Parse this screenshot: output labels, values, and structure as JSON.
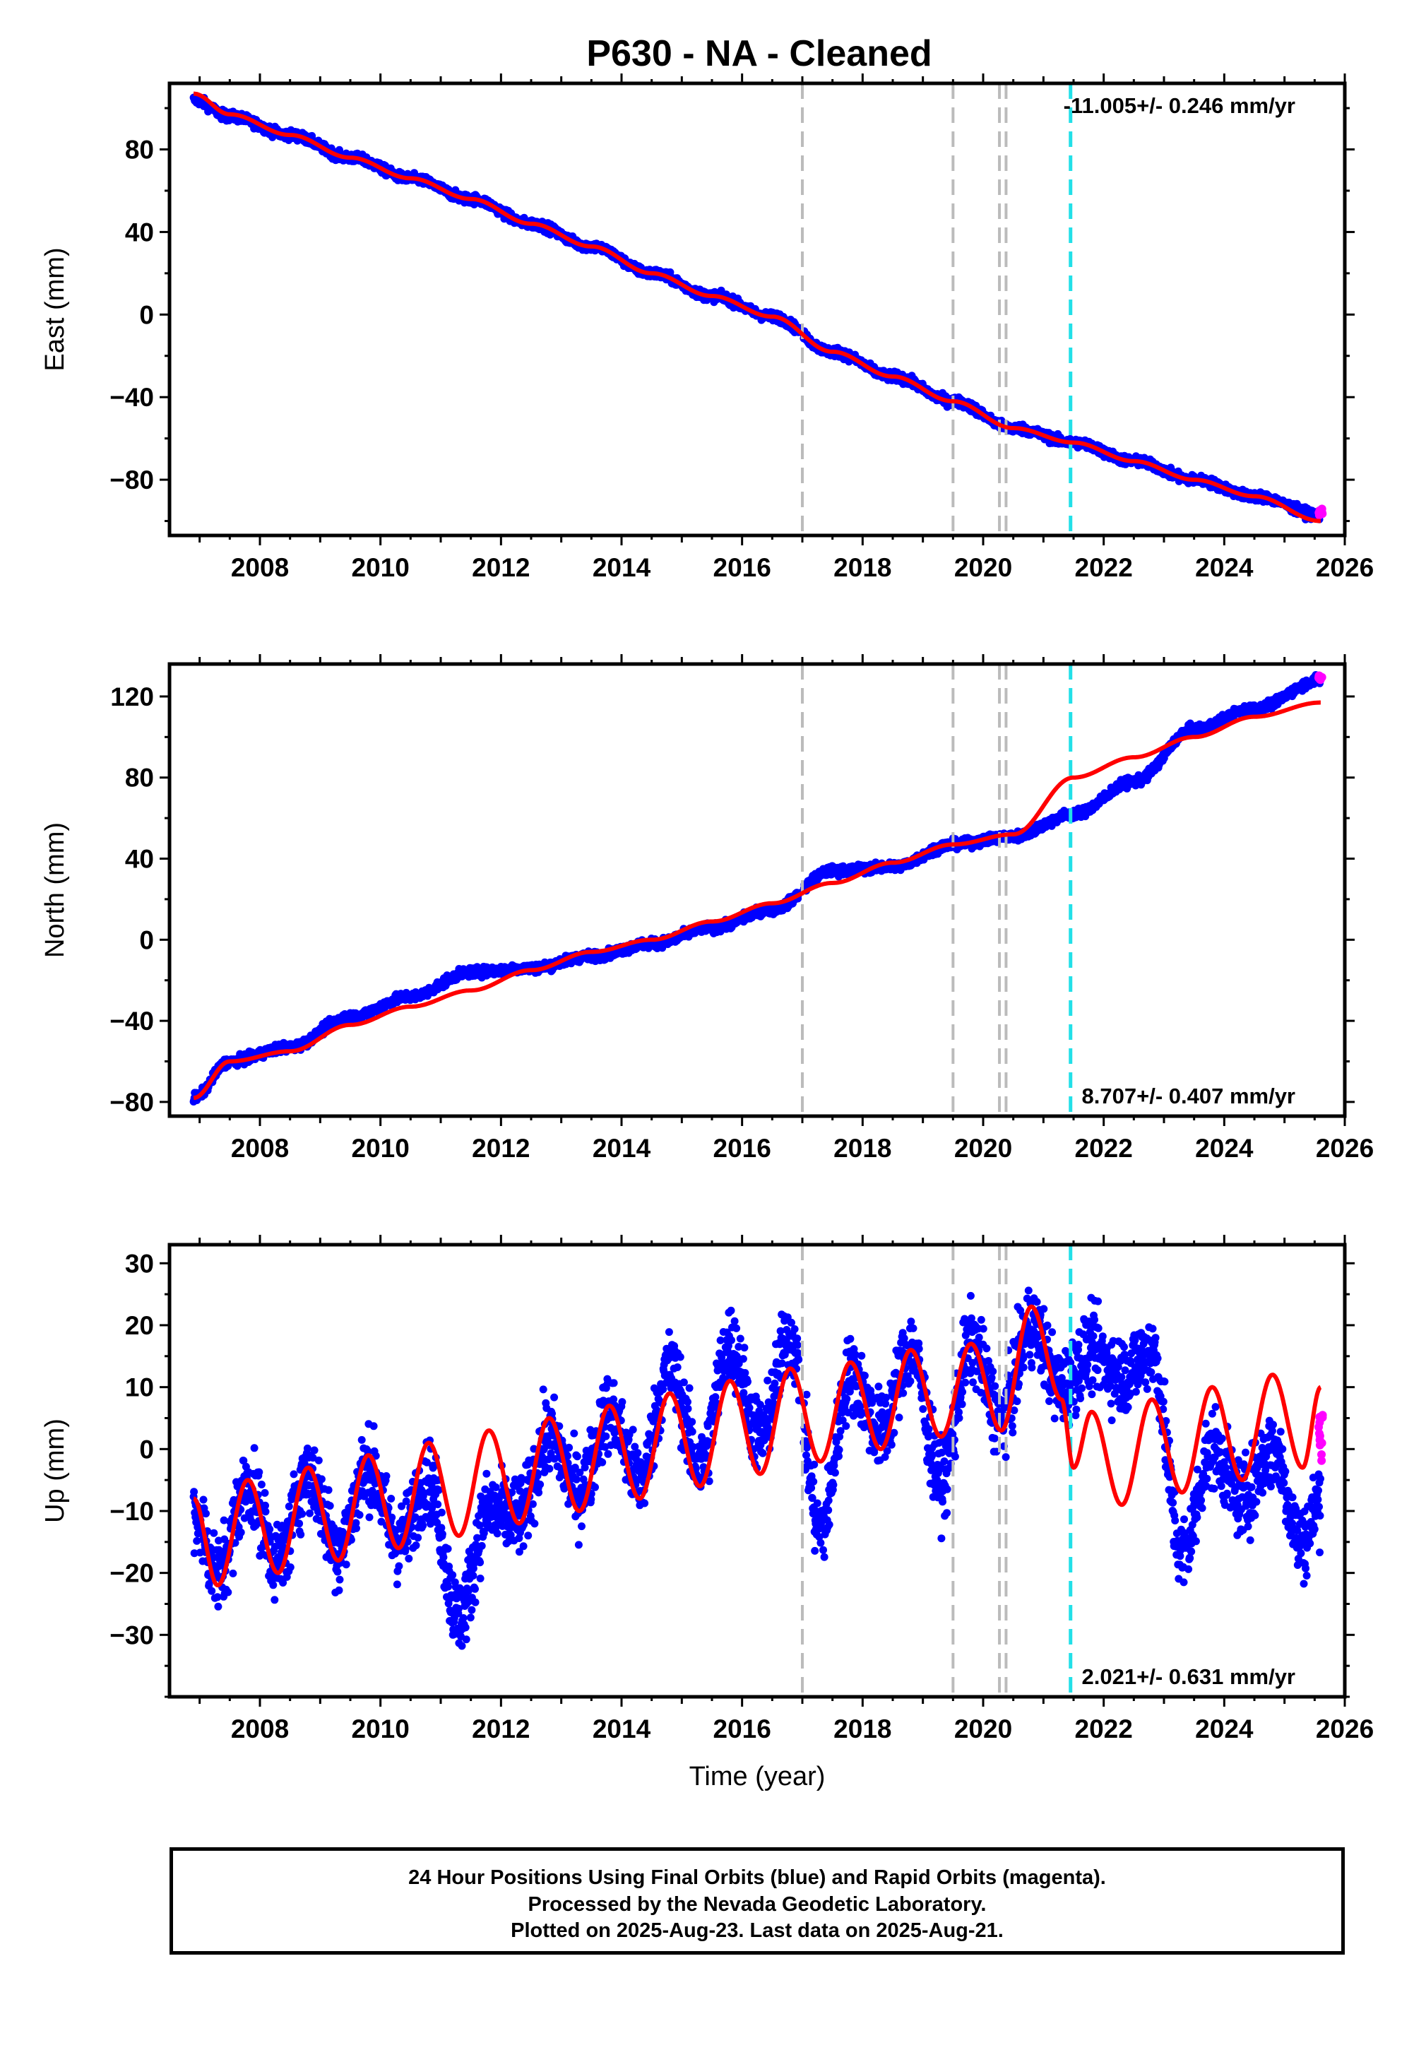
{
  "title": "P630  - NA - Cleaned",
  "footer": {
    "line1": "24 Hour Positions Using Final Orbits (blue) and Rapid Orbits (magenta).",
    "line2": "Processed by the Nevada Geodetic Laboratory.",
    "line3": "Plotted on 2025-Aug-23. Last data on 2025-Aug-21."
  },
  "colors": {
    "final_orbits": "#0000ff",
    "rapid_orbits": "#ff00ff",
    "model": "#ff0000",
    "event_gray": "#bbbbbb",
    "event_cyan": "#22e0e8"
  },
  "chart_data": [
    {
      "type": "scatter",
      "ylabel": "East (mm)",
      "xlabel": "",
      "xlim": [
        2006.5,
        2026.0
      ],
      "ylim": [
        -107,
        112
      ],
      "x_ticks": [
        2008,
        2010,
        2012,
        2014,
        2016,
        2018,
        2020,
        2022,
        2024,
        2026
      ],
      "y_ticks": [
        80,
        40,
        0,
        -40,
        -80
      ],
      "rate_label": "-11.005+/- 0.246 mm/yr",
      "rate_position": "top-right",
      "events": [
        {
          "year": 2017.0,
          "color": "gray"
        },
        {
          "year": 2019.5,
          "color": "gray"
        },
        {
          "year": 2020.27,
          "color": "gray"
        },
        {
          "year": 2020.38,
          "color": "gray"
        },
        {
          "year": 2021.45,
          "color": "cyan"
        }
      ],
      "series": [
        {
          "values": [
            [
              2006.9,
              104
            ],
            [
              2007.5,
              96
            ],
            [
              2008.5,
              87
            ],
            [
              2009.5,
              76
            ],
            [
              2010.5,
              66
            ],
            [
              2011.5,
              56
            ],
            [
              2012.5,
              44
            ],
            [
              2013.5,
              33
            ],
            [
              2014.5,
              20
            ],
            [
              2015.5,
              9
            ],
            [
              2016.5,
              -1
            ],
            [
              2017.5,
              -18
            ],
            [
              2018.5,
              -30
            ],
            [
              2019.5,
              -42
            ],
            [
              2020.5,
              -55
            ],
            [
              2021.5,
              -62
            ],
            [
              2022.5,
              -71
            ],
            [
              2023.5,
              -80
            ],
            [
              2024.5,
              -88
            ],
            [
              2025.6,
              -97
            ]
          ]
        },
        {
          "values": [
            [
              2025.6,
              -96
            ]
          ]
        },
        {
          "values": [
            [
              2006.9,
              107
            ],
            [
              2007.5,
              97
            ],
            [
              2008.5,
              87
            ],
            [
              2009.5,
              76
            ],
            [
              2010.5,
              66
            ],
            [
              2011.5,
              56
            ],
            [
              2012.5,
              44
            ],
            [
              2013.5,
              33
            ],
            [
              2014.5,
              20
            ],
            [
              2015.5,
              9
            ],
            [
              2016.5,
              -1
            ],
            [
              2017.5,
              -18
            ],
            [
              2018.5,
              -30
            ],
            [
              2019.5,
              -42
            ],
            [
              2020.5,
              -55
            ],
            [
              2021.5,
              -62
            ],
            [
              2022.5,
              -71
            ],
            [
              2023.5,
              -80
            ],
            [
              2024.5,
              -88
            ],
            [
              2025.6,
              -100
            ]
          ]
        }
      ]
    },
    {
      "type": "scatter",
      "ylabel": "North (mm)",
      "xlabel": "",
      "xlim": [
        2006.5,
        2026.0
      ],
      "ylim": [
        -87,
        136
      ],
      "x_ticks": [
        2008,
        2010,
        2012,
        2014,
        2016,
        2018,
        2020,
        2022,
        2024,
        2026
      ],
      "y_ticks": [
        120,
        80,
        40,
        0,
        -40,
        -80
      ],
      "rate_label": "8.707+/- 0.407 mm/yr",
      "rate_position": "bottom-right",
      "events": [
        {
          "year": 2017.0,
          "color": "gray"
        },
        {
          "year": 2019.5,
          "color": "gray"
        },
        {
          "year": 2020.27,
          "color": "gray"
        },
        {
          "year": 2020.38,
          "color": "gray"
        },
        {
          "year": 2021.45,
          "color": "cyan"
        }
      ],
      "series": [
        {
          "values": [
            [
              2006.9,
              -78
            ],
            [
              2007.5,
              -60
            ],
            [
              2008.5,
              -53
            ],
            [
              2009.5,
              -38
            ],
            [
              2010.5,
              -28
            ],
            [
              2011.5,
              -16
            ],
            [
              2012.5,
              -14
            ],
            [
              2013.5,
              -8
            ],
            [
              2014.5,
              -2
            ],
            [
              2015.5,
              6
            ],
            [
              2016.5,
              15
            ],
            [
              2017.5,
              34
            ],
            [
              2018.5,
              36
            ],
            [
              2019.5,
              47
            ],
            [
              2020.5,
              51
            ],
            [
              2021.5,
              62
            ],
            [
              2022.5,
              78
            ],
            [
              2023.5,
              104
            ],
            [
              2024.5,
              114
            ],
            [
              2025.6,
              128
            ]
          ]
        },
        {
          "values": [
            [
              2025.6,
              129
            ]
          ]
        },
        {
          "values": [
            [
              2006.9,
              -78
            ],
            [
              2007.5,
              -60
            ],
            [
              2008.5,
              -55
            ],
            [
              2009.5,
              -42
            ],
            [
              2010.5,
              -33
            ],
            [
              2011.5,
              -25
            ],
            [
              2012.5,
              -15
            ],
            [
              2013.5,
              -6
            ],
            [
              2014.5,
              0
            ],
            [
              2015.5,
              9
            ],
            [
              2016.5,
              18
            ],
            [
              2017.5,
              28
            ],
            [
              2018.5,
              38
            ],
            [
              2019.5,
              47
            ],
            [
              2020.5,
              52
            ],
            [
              2021.5,
              80
            ],
            [
              2022.5,
              90
            ],
            [
              2023.5,
              100
            ],
            [
              2024.5,
              110
            ],
            [
              2025.6,
              117
            ]
          ]
        }
      ]
    },
    {
      "type": "scatter",
      "ylabel": "Up (mm)",
      "xlabel": "Time (year)",
      "xlim": [
        2006.5,
        2026.0
      ],
      "ylim": [
        -40,
        33
      ],
      "x_ticks": [
        2008,
        2010,
        2012,
        2014,
        2016,
        2018,
        2020,
        2022,
        2024,
        2026
      ],
      "y_ticks": [
        30,
        20,
        10,
        0,
        -10,
        -20,
        -30
      ],
      "rate_label": "2.021+/- 0.631 mm/yr",
      "rate_position": "bottom-right",
      "events": [
        {
          "year": 2017.0,
          "color": "gray"
        },
        {
          "year": 2019.5,
          "color": "gray"
        },
        {
          "year": 2020.27,
          "color": "gray"
        },
        {
          "year": 2020.38,
          "color": "gray"
        },
        {
          "year": 2021.45,
          "color": "cyan"
        }
      ],
      "series": [
        {
          "values": [
            [
              2006.9,
              -10
            ],
            [
              2007.3,
              -20
            ],
            [
              2007.8,
              -6
            ],
            [
              2008.3,
              -18
            ],
            [
              2008.8,
              -4
            ],
            [
              2009.3,
              -16
            ],
            [
              2009.8,
              -3
            ],
            [
              2010.3,
              -15
            ],
            [
              2010.8,
              -5
            ],
            [
              2011.3,
              -27
            ],
            [
              2011.8,
              -10
            ],
            [
              2012.3,
              -11
            ],
            [
              2012.8,
              2
            ],
            [
              2013.3,
              -7
            ],
            [
              2013.8,
              6
            ],
            [
              2014.3,
              -5
            ],
            [
              2014.8,
              13
            ],
            [
              2015.3,
              -3
            ],
            [
              2015.8,
              17
            ],
            [
              2016.3,
              2
            ],
            [
              2016.8,
              18
            ],
            [
              2017.3,
              -13
            ],
            [
              2017.8,
              12
            ],
            [
              2018.3,
              3
            ],
            [
              2018.8,
              16
            ],
            [
              2019.3,
              -5
            ],
            [
              2019.8,
              17
            ],
            [
              2020.3,
              5
            ],
            [
              2020.8,
              20
            ],
            [
              2021.3,
              10
            ],
            [
              2021.8,
              16
            ],
            [
              2022.3,
              12
            ],
            [
              2022.8,
              16
            ],
            [
              2023.3,
              -17
            ],
            [
              2023.8,
              0
            ],
            [
              2024.3,
              -8
            ],
            [
              2024.8,
              0
            ],
            [
              2025.3,
              -15
            ],
            [
              2025.6,
              -8
            ]
          ]
        },
        {
          "values": [
            [
              2025.6,
              3
            ]
          ]
        },
        {
          "values": [
            [
              2006.9,
              -8
            ],
            [
              2007.3,
              -22
            ],
            [
              2007.8,
              -5
            ],
            [
              2008.3,
              -20
            ],
            [
              2008.8,
              -3
            ],
            [
              2009.3,
              -18
            ],
            [
              2009.8,
              -1
            ],
            [
              2010.3,
              -16
            ],
            [
              2010.8,
              1
            ],
            [
              2011.3,
              -14
            ],
            [
              2011.8,
              3
            ],
            [
              2012.3,
              -12
            ],
            [
              2012.8,
              5
            ],
            [
              2013.3,
              -10
            ],
            [
              2013.8,
              7
            ],
            [
              2014.3,
              -8
            ],
            [
              2014.8,
              9
            ],
            [
              2015.3,
              -6
            ],
            [
              2015.8,
              11
            ],
            [
              2016.3,
              -4
            ],
            [
              2016.8,
              13
            ],
            [
              2017.3,
              -2
            ],
            [
              2017.8,
              14
            ],
            [
              2018.3,
              0
            ],
            [
              2018.8,
              16
            ],
            [
              2019.3,
              2
            ],
            [
              2019.8,
              17
            ],
            [
              2020.3,
              3
            ],
            [
              2020.8,
              23
            ],
            [
              2021.3,
              8
            ],
            [
              2021.5,
              -3
            ],
            [
              2021.8,
              6
            ],
            [
              2022.3,
              -9
            ],
            [
              2022.8,
              8
            ],
            [
              2023.3,
              -7
            ],
            [
              2023.8,
              10
            ],
            [
              2024.3,
              -5
            ],
            [
              2024.8,
              12
            ],
            [
              2025.3,
              -3
            ],
            [
              2025.6,
              10
            ]
          ]
        }
      ]
    }
  ]
}
